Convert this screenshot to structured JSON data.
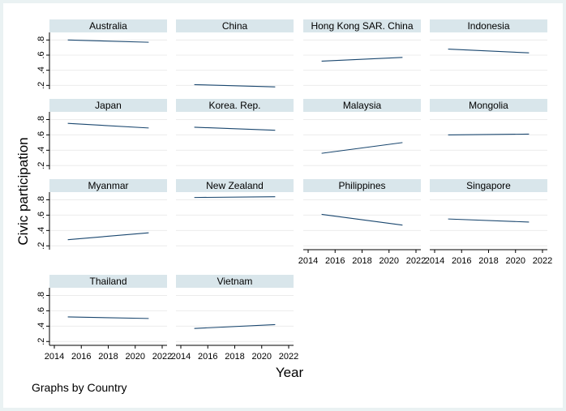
{
  "chart_data": {
    "type": "line",
    "xlabel": "Year",
    "ylabel": "Civic participation",
    "note": "Graphs by Country",
    "xlim": [
      2014,
      2022
    ],
    "ylim": [
      0.15,
      0.9
    ],
    "x_ticks": [
      2014,
      2016,
      2018,
      2020,
      2022
    ],
    "y_ticks": [
      0.2,
      0.4,
      0.6,
      0.8
    ],
    "y_tick_labels": [
      ".2",
      ".4",
      ".6",
      ".8"
    ],
    "grid": true,
    "series_color": "#1a476f",
    "header_color": "#d9e6eb",
    "panels": [
      {
        "name": "Australia",
        "x": [
          2015,
          2021
        ],
        "y": [
          0.8,
          0.77
        ]
      },
      {
        "name": "China",
        "x": [
          2015,
          2021
        ],
        "y": [
          0.21,
          0.18
        ]
      },
      {
        "name": "Hong Kong SAR. China",
        "x": [
          2015,
          2021
        ],
        "y": [
          0.52,
          0.57
        ]
      },
      {
        "name": "Indonesia",
        "x": [
          2015,
          2021
        ],
        "y": [
          0.68,
          0.63
        ]
      },
      {
        "name": "Japan",
        "x": [
          2015,
          2021
        ],
        "y": [
          0.75,
          0.69
        ]
      },
      {
        "name": "Korea. Rep.",
        "x": [
          2015,
          2021
        ],
        "y": [
          0.7,
          0.66
        ]
      },
      {
        "name": "Malaysia",
        "x": [
          2015,
          2021
        ],
        "y": [
          0.36,
          0.5
        ]
      },
      {
        "name": "Mongolia",
        "x": [
          2015,
          2021
        ],
        "y": [
          0.6,
          0.61
        ]
      },
      {
        "name": "Myanmar",
        "x": [
          2015,
          2021
        ],
        "y": [
          0.28,
          0.37
        ]
      },
      {
        "name": "New Zealand",
        "x": [
          2015,
          2021
        ],
        "y": [
          0.83,
          0.84
        ]
      },
      {
        "name": "Philippines",
        "x": [
          2015,
          2021
        ],
        "y": [
          0.61,
          0.47
        ]
      },
      {
        "name": "Singapore",
        "x": [
          2015,
          2021
        ],
        "y": [
          0.55,
          0.51
        ]
      },
      {
        "name": "Thailand",
        "x": [
          2015,
          2021
        ],
        "y": [
          0.52,
          0.5
        ]
      },
      {
        "name": "Vietnam",
        "x": [
          2015,
          2021
        ],
        "y": [
          0.37,
          0.42
        ]
      }
    ]
  }
}
